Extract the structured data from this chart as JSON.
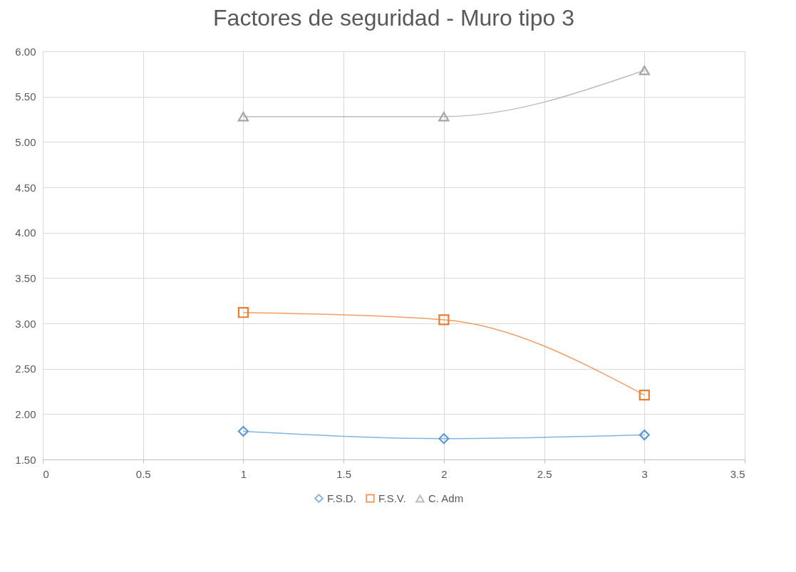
{
  "chart_data": {
    "type": "line",
    "title": "Factores de seguridad - Muro tipo 3",
    "x": [
      1,
      2,
      3
    ],
    "series": [
      {
        "name": "F.S.D.",
        "color": "#5b9bd5",
        "marker": "diamond",
        "values": [
          1.81,
          1.73,
          1.77
        ]
      },
      {
        "name": "F.S.V.",
        "color": "#ed7d31",
        "marker": "square",
        "values": [
          3.12,
          3.04,
          2.21
        ]
      },
      {
        "name": "C. Adm",
        "color": "#a5a5a5",
        "marker": "triangle",
        "values": [
          5.28,
          5.28,
          5.79
        ]
      }
    ],
    "xlim": [
      0,
      3.5
    ],
    "xticks": [
      0,
      0.5,
      1,
      1.5,
      2,
      2.5,
      3,
      3.5
    ],
    "ylim": [
      1.5,
      6
    ],
    "yticks": [
      {
        "value": 1.5,
        "label": "1.50"
      },
      {
        "value": 2,
        "label": "2.00"
      },
      {
        "value": 2.5,
        "label": "2.50"
      },
      {
        "value": 3,
        "label": "3.00"
      },
      {
        "value": 3.5,
        "label": "3.50"
      },
      {
        "value": 4,
        "label": "4.00"
      },
      {
        "value": 4.5,
        "label": "4.50"
      },
      {
        "value": 5,
        "label": "5.00"
      },
      {
        "value": 5.5,
        "label": "5.50"
      },
      {
        "value": 6,
        "label": "6.00"
      }
    ],
    "grid": true,
    "legend": "bottom",
    "line_style": "solid"
  }
}
